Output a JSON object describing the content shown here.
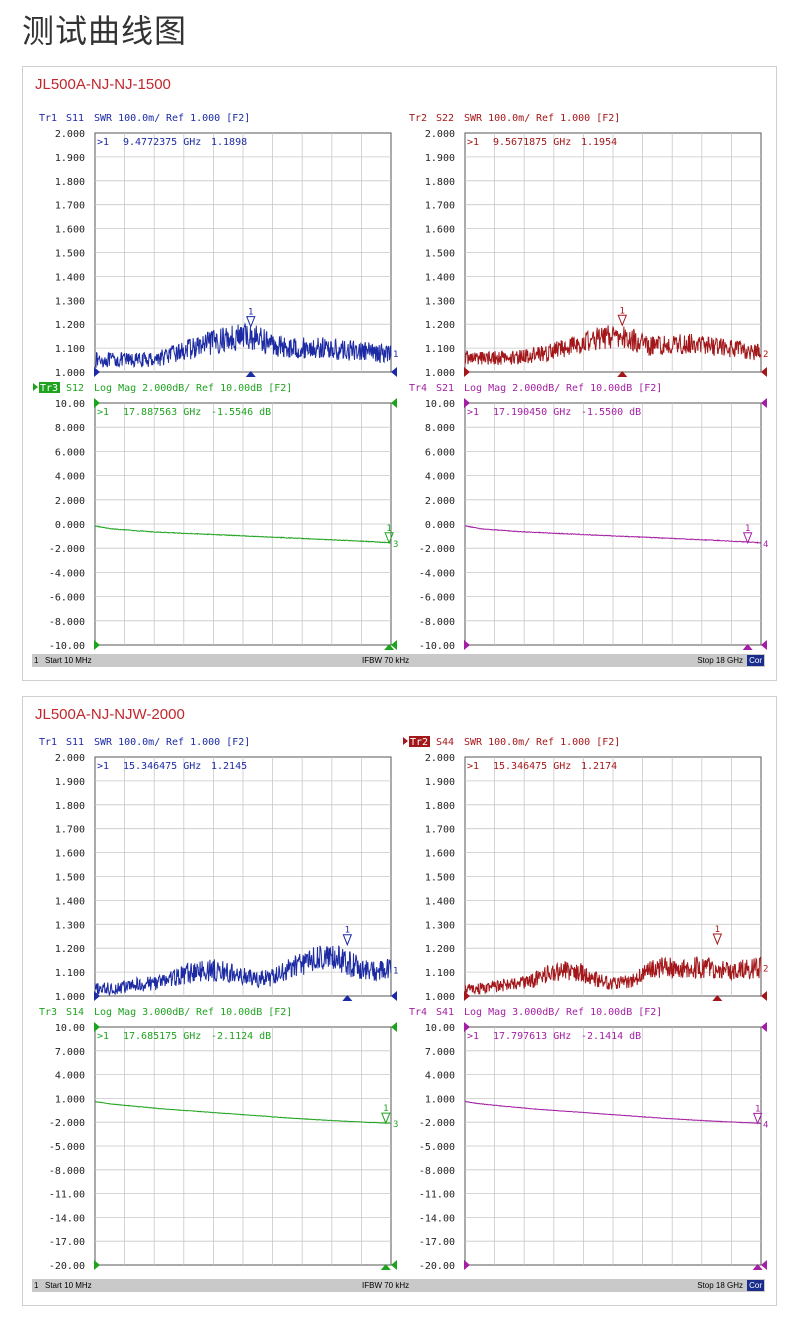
{
  "page_title": "测试曲线图",
  "chart_data": [
    {
      "type": "line",
      "title": "JL500A-NJ-NJ-1500",
      "status": {
        "channel": "1",
        "start": "Start 10 MHz",
        "ifbw": "IFBW 70 kHz",
        "stop": "Stop 18 GHz",
        "cor": "Cor"
      },
      "panels": [
        {
          "trace": "Tr1",
          "param": "S11",
          "format": "SWR 100.0m/",
          "ref": "Ref 1.000 [F2]",
          "trace_active": false,
          "color": "#1c2aa3",
          "y_ticks": [
            "2.000",
            "1.900",
            "1.800",
            "1.700",
            "1.600",
            "1.500",
            "1.400",
            "1.300",
            "1.200",
            "1.100",
            "1.000"
          ],
          "ylim": [
            1.0,
            2.0
          ],
          "xlim_ghz": [
            0.01,
            18
          ],
          "marker": {
            "label": ">1",
            "freq": "9.4772375 GHz",
            "value": "1.1898"
          },
          "marker_x_ghz": 9.477,
          "marker_y": 1.1898,
          "end_label": "1",
          "series": {
            "x_ghz": [
              0,
              1,
              2,
              3,
              4,
              5,
              6,
              7,
              8,
              9,
              10,
              11,
              12,
              13,
              14,
              15,
              16,
              17,
              18
            ],
            "y": [
              1.05,
              1.05,
              1.05,
              1.05,
              1.06,
              1.08,
              1.1,
              1.12,
              1.14,
              1.15,
              1.14,
              1.11,
              1.1,
              1.1,
              1.1,
              1.09,
              1.09,
              1.08,
              1.08
            ]
          },
          "noise": 0.045
        },
        {
          "trace": "Tr2",
          "param": "S22",
          "format": "SWR 100.0m/",
          "ref": "Ref 1.000 [F2]",
          "trace_active": false,
          "color": "#a3171a",
          "y_ticks": [
            "2.000",
            "1.900",
            "1.800",
            "1.700",
            "1.600",
            "1.500",
            "1.400",
            "1.300",
            "1.200",
            "1.100",
            "1.000"
          ],
          "ylim": [
            1.0,
            2.0
          ],
          "xlim_ghz": [
            0.01,
            18
          ],
          "marker": {
            "label": ">1",
            "freq": "9.5671875 GHz",
            "value": "1.1954"
          },
          "marker_x_ghz": 9.567,
          "marker_y": 1.1954,
          "end_label": "2",
          "series": {
            "x_ghz": [
              0,
              1,
              2,
              3,
              4,
              5,
              6,
              7,
              8,
              9,
              10,
              11,
              12,
              13,
              14,
              15,
              16,
              17,
              18
            ],
            "y": [
              1.06,
              1.06,
              1.06,
              1.06,
              1.07,
              1.08,
              1.1,
              1.12,
              1.14,
              1.15,
              1.14,
              1.11,
              1.11,
              1.12,
              1.12,
              1.11,
              1.1,
              1.09,
              1.08
            ]
          },
          "noise": 0.04
        },
        {
          "trace": "Tr3",
          "param": "S12",
          "format": "Log Mag 2.000dB/",
          "ref": "Ref 10.00dB [F2]",
          "trace_active": true,
          "color": "#1fa31f",
          "y_ticks": [
            "10.00",
            "8.000",
            "6.000",
            "4.000",
            "2.000",
            "0.000",
            "-2.000",
            "-4.000",
            "-6.000",
            "-8.000",
            "-10.00"
          ],
          "ylim": [
            -10,
            10
          ],
          "xlim_ghz": [
            0.01,
            18
          ],
          "marker": {
            "label": ">1",
            "freq": "17.887563 GHz",
            "value": "-1.5546 dB"
          },
          "marker_x_ghz": 17.887,
          "marker_y": -1.5546,
          "end_label": "3",
          "series": {
            "x_ghz": [
              0,
              1,
              2,
              3,
              4,
              5,
              6,
              7,
              8,
              9,
              10,
              11,
              12,
              13,
              14,
              15,
              16,
              17,
              18
            ],
            "y": [
              -0.15,
              -0.4,
              -0.5,
              -0.6,
              -0.68,
              -0.74,
              -0.8,
              -0.86,
              -0.92,
              -0.98,
              -1.04,
              -1.1,
              -1.16,
              -1.22,
              -1.28,
              -1.34,
              -1.4,
              -1.48,
              -1.55
            ]
          },
          "noise": 0.03
        },
        {
          "trace": "Tr4",
          "param": "S21",
          "format": "Log Mag 2.000dB/",
          "ref": "Ref 10.00dB [F2]",
          "trace_active": false,
          "color": "#a31fa3",
          "y_ticks": [
            "10.00",
            "8.000",
            "6.000",
            "4.000",
            "2.000",
            "0.000",
            "-2.000",
            "-4.000",
            "-6.000",
            "-8.000",
            "-10.00"
          ],
          "ylim": [
            -10,
            10
          ],
          "xlim_ghz": [
            0.01,
            18
          ],
          "marker": {
            "label": ">1",
            "freq": "17.190450 GHz",
            "value": "-1.5500 dB"
          },
          "marker_x_ghz": 17.19,
          "marker_y": -1.55,
          "end_label": "4",
          "series": {
            "x_ghz": [
              0,
              1,
              2,
              3,
              4,
              5,
              6,
              7,
              8,
              9,
              10,
              11,
              12,
              13,
              14,
              15,
              16,
              17,
              18
            ],
            "y": [
              -0.15,
              -0.4,
              -0.5,
              -0.6,
              -0.68,
              -0.74,
              -0.8,
              -0.86,
              -0.92,
              -0.98,
              -1.04,
              -1.1,
              -1.16,
              -1.22,
              -1.28,
              -1.34,
              -1.4,
              -1.48,
              -1.55
            ]
          },
          "noise": 0.03
        }
      ]
    },
    {
      "type": "line",
      "title": "JL500A-NJ-NJW-2000",
      "status": {
        "channel": "1",
        "start": "Start 10 MHz",
        "ifbw": "IFBW 70 kHz",
        "stop": "Stop 18 GHz",
        "cor": "Cor"
      },
      "panels": [
        {
          "trace": "Tr1",
          "param": "S11",
          "format": "SWR 100.0m/",
          "ref": "Ref 1.000 [F2]",
          "trace_active": false,
          "color": "#1c2aa3",
          "y_ticks": [
            "2.000",
            "1.900",
            "1.800",
            "1.700",
            "1.600",
            "1.500",
            "1.400",
            "1.300",
            "1.200",
            "1.100",
            "1.000"
          ],
          "ylim": [
            1.0,
            2.0
          ],
          "xlim_ghz": [
            0.01,
            18
          ],
          "marker": {
            "label": ">1",
            "freq": "15.346475 GHz",
            "value": "1.2145"
          },
          "marker_x_ghz": 15.346,
          "marker_y": 1.2145,
          "end_label": "1",
          "series": {
            "x_ghz": [
              0,
              1,
              2,
              3,
              4,
              5,
              6,
              7,
              8,
              9,
              10,
              11,
              12,
              13,
              14,
              15,
              16,
              17,
              18
            ],
            "y": [
              1.03,
              1.03,
              1.04,
              1.05,
              1.06,
              1.08,
              1.1,
              1.11,
              1.1,
              1.08,
              1.07,
              1.08,
              1.12,
              1.15,
              1.16,
              1.15,
              1.12,
              1.1,
              1.11
            ]
          },
          "noise": 0.045
        },
        {
          "trace": "Tr2",
          "param": "S44",
          "format": "SWR 100.0m/",
          "ref": "Ref 1.000 [F2]",
          "trace_active": true,
          "color": "#a3171a",
          "y_ticks": [
            "2.000",
            "1.900",
            "1.800",
            "1.700",
            "1.600",
            "1.500",
            "1.400",
            "1.300",
            "1.200",
            "1.100",
            "1.000"
          ],
          "ylim": [
            1.0,
            2.0
          ],
          "xlim_ghz": [
            0.01,
            18
          ],
          "marker": {
            "label": ">1",
            "freq": "15.346475 GHz",
            "value": "1.2174"
          },
          "marker_x_ghz": 15.346,
          "marker_y": 1.2174,
          "end_label": "2",
          "series": {
            "x_ghz": [
              0,
              1,
              2,
              3,
              4,
              5,
              6,
              7,
              8,
              9,
              10,
              11,
              12,
              13,
              14,
              15,
              16,
              17,
              18
            ],
            "y": [
              1.03,
              1.03,
              1.04,
              1.05,
              1.06,
              1.09,
              1.11,
              1.1,
              1.07,
              1.05,
              1.06,
              1.1,
              1.12,
              1.12,
              1.12,
              1.12,
              1.11,
              1.11,
              1.12
            ]
          },
          "noise": 0.04
        },
        {
          "trace": "Tr3",
          "param": "S14",
          "format": "Log Mag 3.000dB/",
          "ref": "Ref 10.00dB [F2]",
          "trace_active": false,
          "color": "#1fa31f",
          "y_ticks": [
            "10.00",
            "7.000",
            "4.000",
            "1.000",
            "-2.000",
            "-5.000",
            "-8.000",
            "-11.00",
            "-14.00",
            "-17.00",
            "-20.00"
          ],
          "ylim": [
            -20,
            10
          ],
          "xlim_ghz": [
            0.01,
            18
          ],
          "marker": {
            "label": ">1",
            "freq": "17.685175 GHz",
            "value": "-2.1124 dB"
          },
          "marker_x_ghz": 17.685,
          "marker_y": -2.1124,
          "end_label": "3",
          "series": {
            "x_ghz": [
              0,
              1,
              2,
              3,
              4,
              5,
              6,
              7,
              8,
              9,
              10,
              11,
              12,
              13,
              14,
              15,
              16,
              17,
              18
            ],
            "y": [
              0.6,
              0.3,
              0.1,
              -0.1,
              -0.3,
              -0.45,
              -0.6,
              -0.75,
              -0.9,
              -1.05,
              -1.2,
              -1.35,
              -1.5,
              -1.62,
              -1.74,
              -1.86,
              -1.96,
              -2.05,
              -2.12
            ]
          },
          "noise": 0.03
        },
        {
          "trace": "Tr4",
          "param": "S41",
          "format": "Log Mag 3.000dB/",
          "ref": "Ref 10.00dB [F2]",
          "trace_active": false,
          "color": "#a31fa3",
          "y_ticks": [
            "10.00",
            "7.000",
            "4.000",
            "1.000",
            "-2.000",
            "-5.000",
            "-8.000",
            "-11.00",
            "-14.00",
            "-17.00",
            "-20.00"
          ],
          "ylim": [
            -20,
            10
          ],
          "xlim_ghz": [
            0.01,
            18
          ],
          "marker": {
            "label": ">1",
            "freq": "17.797613 GHz",
            "value": "-2.1414 dB"
          },
          "marker_x_ghz": 17.797,
          "marker_y": -2.1414,
          "end_label": "4",
          "series": {
            "x_ghz": [
              0,
              1,
              2,
              3,
              4,
              5,
              6,
              7,
              8,
              9,
              10,
              11,
              12,
              13,
              14,
              15,
              16,
              17,
              18
            ],
            "y": [
              0.6,
              0.3,
              0.1,
              -0.1,
              -0.3,
              -0.45,
              -0.6,
              -0.75,
              -0.9,
              -1.05,
              -1.2,
              -1.35,
              -1.5,
              -1.62,
              -1.74,
              -1.86,
              -1.96,
              -2.05,
              -2.14
            ]
          },
          "noise": 0.03
        }
      ]
    }
  ]
}
